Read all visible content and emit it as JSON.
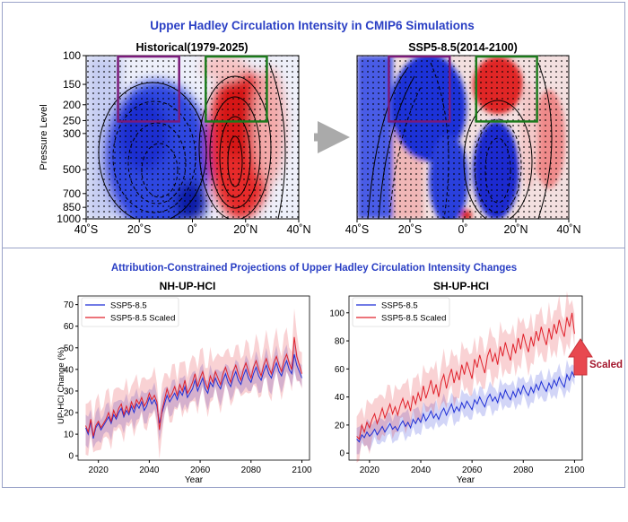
{
  "figure_title": "Upper Hadley Circulation Intensity in CMIP6 Simulations",
  "lower_title": "Attribution-Constrained Projections of Upper Hadley Circulation Intensity Changes",
  "scaled_annotation": "Scaled",
  "colors": {
    "blue": "#1f2fd6",
    "red": "#e0202a",
    "title": "#2a3fc4",
    "scaled_arrow": "#e8484f",
    "scaled_text": "#a3152b"
  },
  "chart_data": [
    {
      "type": "heatmap",
      "title": "Historical(1979-2025)",
      "ylabel": "Pressure Level",
      "xticks": [
        "40˚S",
        "20˚S",
        "0˚",
        "20˚N",
        "40˚N"
      ],
      "yticks": [
        "100",
        "150",
        "200",
        "250",
        "300",
        "500",
        "700",
        "850",
        "1000"
      ],
      "log_y": true,
      "xlim": [
        -40,
        40
      ],
      "ylim": [
        1000,
        100
      ],
      "boxes": [
        {
          "color": "purple",
          "lat": [
            -28,
            -5
          ],
          "p": [
            100,
            250
          ]
        },
        {
          "color": "green",
          "lat": [
            5,
            28
          ],
          "p": [
            100,
            250
          ]
        }
      ]
    },
    {
      "type": "heatmap",
      "title": "SSP5-8.5(2014-2100)",
      "xticks": [
        "40˚S",
        "20˚S",
        "0˚",
        "20˚N",
        "40˚N"
      ],
      "log_y": true,
      "xlim": [
        -40,
        40
      ],
      "ylim": [
        1000,
        100
      ],
      "boxes": [
        {
          "color": "purple",
          "lat": [
            -28,
            -5
          ],
          "p": [
            100,
            250
          ]
        },
        {
          "color": "green",
          "lat": [
            5,
            28
          ],
          "p": [
            100,
            250
          ]
        }
      ]
    },
    {
      "type": "line",
      "title": "NH-UP-HCI",
      "xlabel": "Year",
      "ylabel": "UP-HCI Change (%)",
      "xlim": [
        2012,
        2103
      ],
      "ylim": [
        -2,
        74
      ],
      "xticks": [
        2020,
        2040,
        2060,
        2080,
        2100
      ],
      "yticks": [
        0,
        10,
        20,
        30,
        40,
        50,
        60,
        70
      ],
      "legend": "top-left",
      "x_start": 2015,
      "x_end": 2100,
      "series": [
        {
          "name": "SSP5-8.5",
          "color": "#1f2fd6",
          "values": [
            13,
            10,
            16,
            8,
            13,
            15,
            12,
            14,
            16,
            18,
            15,
            19,
            17,
            20,
            22,
            18,
            21,
            19,
            23,
            20,
            24,
            22,
            25,
            21,
            23,
            27,
            24,
            26,
            23,
            15,
            20,
            24,
            28,
            25,
            27,
            29,
            26,
            30,
            28,
            32,
            27,
            29,
            31,
            35,
            30,
            33,
            36,
            31,
            29,
            34,
            32,
            36,
            33,
            31,
            35,
            38,
            34,
            32,
            36,
            39,
            35,
            33,
            37,
            40,
            36,
            34,
            38,
            41,
            37,
            35,
            39,
            42,
            38,
            36,
            40,
            43,
            39,
            37,
            41,
            44,
            40,
            38,
            47,
            42,
            39,
            36
          ],
          "band": 6
        },
        {
          "name": "SSP5-8.5 Scaled",
          "color": "#e0202a",
          "values": [
            14,
            11,
            17,
            9,
            14,
            16,
            13,
            15,
            17,
            20,
            16,
            21,
            18,
            22,
            24,
            19,
            23,
            20,
            25,
            22,
            26,
            24,
            27,
            23,
            25,
            29,
            26,
            28,
            25,
            12,
            21,
            26,
            31,
            27,
            29,
            32,
            28,
            33,
            30,
            35,
            29,
            31,
            34,
            38,
            32,
            36,
            39,
            34,
            31,
            37,
            34,
            39,
            36,
            33,
            38,
            41,
            37,
            34,
            39,
            42,
            38,
            35,
            40,
            43,
            39,
            36,
            41,
            44,
            40,
            37,
            42,
            45,
            41,
            38,
            43,
            46,
            42,
            39,
            44,
            47,
            43,
            40,
            55,
            46,
            42,
            38
          ],
          "band": 10
        }
      ]
    },
    {
      "type": "line",
      "title": "SH-UP-HCI",
      "xlabel": "Year",
      "xlim": [
        2012,
        2103
      ],
      "ylim": [
        -5,
        112
      ],
      "xticks": [
        2020,
        2040,
        2060,
        2080,
        2100
      ],
      "yticks": [
        0,
        20,
        40,
        60,
        80,
        100
      ],
      "legend": "top-left",
      "x_start": 2015,
      "x_end": 2100,
      "series": [
        {
          "name": "SSP5-8.5",
          "color": "#1f2fd6",
          "values": [
            10,
            8,
            13,
            11,
            15,
            12,
            14,
            17,
            13,
            16,
            19,
            15,
            18,
            21,
            17,
            19,
            16,
            20,
            23,
            19,
            22,
            18,
            24,
            21,
            25,
            22,
            28,
            23,
            26,
            30,
            25,
            28,
            24,
            29,
            32,
            27,
            31,
            35,
            29,
            33,
            30,
            36,
            32,
            37,
            34,
            31,
            38,
            35,
            40,
            36,
            33,
            39,
            42,
            37,
            40,
            36,
            43,
            39,
            45,
            41,
            38,
            44,
            40,
            46,
            42,
            48,
            44,
            41,
            47,
            43,
            49,
            45,
            51,
            47,
            44,
            50,
            46,
            52,
            48,
            54,
            50,
            47,
            56,
            52,
            58,
            54
          ],
          "band": 8
        },
        {
          "name": "SSP5-8.5 Scaled",
          "color": "#e0202a",
          "values": [
            12,
            10,
            20,
            15,
            22,
            18,
            24,
            28,
            21,
            26,
            32,
            25,
            30,
            35,
            28,
            33,
            27,
            34,
            39,
            32,
            37,
            30,
            41,
            35,
            43,
            37,
            48,
            39,
            45,
            52,
            42,
            49,
            40,
            51,
            56,
            46,
            54,
            60,
            50,
            58,
            52,
            63,
            56,
            65,
            59,
            53,
            67,
            61,
            70,
            63,
            57,
            69,
            74,
            65,
            71,
            63,
            76,
            69,
            79,
            72,
            66,
            78,
            71,
            82,
            74,
            85,
            78,
            72,
            83,
            76,
            87,
            80,
            90,
            83,
            77,
            89,
            81,
            92,
            85,
            95,
            88,
            83,
            97,
            90,
            100,
            85
          ],
          "band": 14
        }
      ]
    }
  ]
}
